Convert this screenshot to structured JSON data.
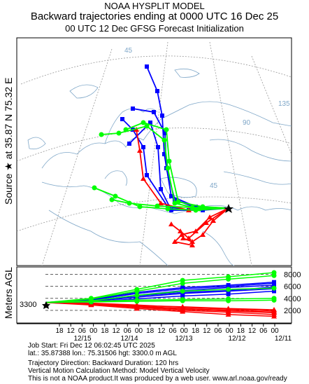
{
  "header": {
    "line1": "NOAA HYSPLIT MODEL",
    "line2": "Backward trajectories ending at 0000 UTC 16 Dec 25",
    "line3": "00 UTC 12 Dec    GFSG  Forecast Initialization"
  },
  "side_labels": {
    "source": "Source ★ at   35.87 N   75.32 E",
    "meters": "Meters AGL"
  },
  "map": {
    "lat_labels": [
      "45",
      "45",
      "90",
      "135"
    ],
    "source_symbol": "star"
  },
  "footer": {
    "line1": "Job Start: Fri Dec 12 06:02:45 UTC 2025",
    "line2": "lat.: 35.87388   lon.: 75.31506   hgt: 3300.0 m AGL",
    "line3": "Trajectory Direction: Backward       Duration: 120 hrs",
    "line4": "Vertical Motion Calculation Method: Model Vertical Velocity",
    "line5": "This is not a NOAA product.It was produced by a web user. www.arl.noaa.gov/ready"
  },
  "colors": {
    "red": "#ff0000",
    "blue": "#0000ff",
    "green": "#00ff00",
    "map": "#7fa7c8"
  },
  "chart_data": {
    "type": "line",
    "start_height": "3300",
    "y_ticks": [
      "8000",
      "6000",
      "4000",
      "2000"
    ],
    "x_hour_ticks": [
      "18",
      "12",
      "06",
      "00",
      "18",
      "12",
      "06",
      "00",
      "18",
      "12",
      "06",
      "00",
      "18",
      "12",
      "06",
      "00",
      "18",
      "12",
      "06",
      "00"
    ],
    "x_date_labels": [
      "12/15",
      "12/14",
      "12/13",
      "12/12",
      "12/11"
    ],
    "ylim": [
      0,
      9000
    ],
    "xlim_hours": [
      0,
      120
    ],
    "series": [
      {
        "color": "red",
        "heights": [
          3300,
          3100,
          2600,
          2200,
          1900,
          1600
        ]
      },
      {
        "color": "red",
        "heights": [
          3300,
          3000,
          2500,
          2000,
          1700,
          1300
        ]
      },
      {
        "color": "red",
        "heights": [
          3300,
          3200,
          2900,
          2500,
          2200,
          1900
        ]
      },
      {
        "color": "red",
        "heights": [
          3300,
          2900,
          2300,
          1800,
          1300,
          1000
        ]
      },
      {
        "color": "red",
        "heights": [
          3300,
          3100,
          2800,
          2600,
          2300,
          2100
        ]
      },
      {
        "color": "red",
        "heights": [
          3300,
          3000,
          2700,
          2300,
          2000,
          1700
        ]
      },
      {
        "color": "blue",
        "heights": [
          3300,
          3600,
          4500,
          5300,
          5800,
          6200
        ]
      },
      {
        "color": "blue",
        "heights": [
          3300,
          3700,
          4800,
          5600,
          6000,
          6500
        ]
      },
      {
        "color": "blue",
        "heights": [
          3300,
          3500,
          4200,
          4800,
          5200,
          5600
        ]
      },
      {
        "color": "blue",
        "heights": [
          3300,
          3800,
          5000,
          5800,
          6200,
          6700
        ]
      },
      {
        "color": "blue",
        "heights": [
          3300,
          3600,
          4400,
          5000,
          5300,
          5900
        ]
      },
      {
        "color": "blue",
        "heights": [
          3300,
          3400,
          3900,
          4400,
          4700,
          5200
        ]
      },
      {
        "color": "green",
        "heights": [
          3300,
          4000,
          5500,
          7000,
          7600,
          8300
        ]
      },
      {
        "color": "green",
        "heights": [
          3300,
          3900,
          5200,
          6500,
          7200,
          7800
        ]
      },
      {
        "color": "green",
        "heights": [
          3300,
          3500,
          3700,
          3800,
          3900,
          4000
        ]
      },
      {
        "color": "green",
        "heights": [
          3300,
          3400,
          3500,
          3600,
          3600,
          3700
        ]
      },
      {
        "color": "green",
        "heights": [
          3300,
          3600,
          4500,
          5200,
          5500,
          5700
        ]
      }
    ]
  }
}
